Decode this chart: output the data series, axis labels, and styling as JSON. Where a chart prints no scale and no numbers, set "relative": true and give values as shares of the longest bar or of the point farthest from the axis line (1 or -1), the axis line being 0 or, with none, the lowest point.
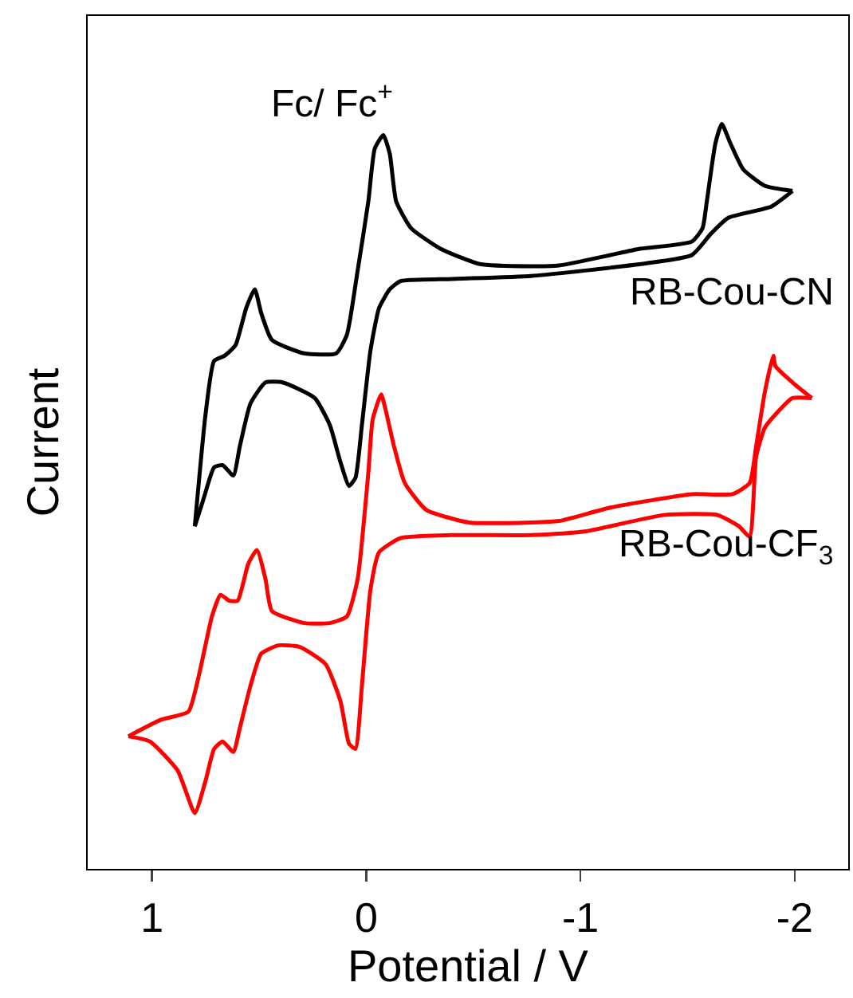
{
  "chart_data": {
    "type": "line",
    "relative": true,
    "xlabel": "Potential / V",
    "ylabel": "Current",
    "xlim": [
      1.3,
      -2.25
    ],
    "xticks": [
      1,
      0,
      -1,
      -2
    ],
    "tick_labels": "x",
    "grid": false,
    "legend": false,
    "marker": "none",
    "line_style": "solid",
    "annotations": [
      {
        "text": "Fc/ Fc$^{+}$",
        "x": -0.08,
        "y": 0.985
      }
    ],
    "series": [
      {
        "name": "RB-Cou-CN",
        "color": "#000000",
        "x": [
          -1.99,
          -1.86,
          -1.76,
          -1.7,
          -1.66,
          -1.63,
          -1.59,
          -1.57,
          -1.52,
          -1.27,
          -1.14,
          -0.9,
          -0.77,
          -0.53,
          -0.35,
          -0.21,
          -0.14,
          -0.11,
          -0.08,
          -0.04,
          -0.01,
          0.04,
          0.09,
          0.14,
          0.29,
          0.44,
          0.49,
          0.52,
          0.56,
          0.61,
          0.66,
          0.71,
          0.75,
          0.8
        ],
        "values": [
          0.91,
          0.917,
          0.939,
          0.974,
          1.0,
          0.974,
          0.896,
          0.86,
          0.842,
          0.832,
          0.824,
          0.81,
          0.809,
          0.812,
          0.832,
          0.86,
          0.896,
          0.96,
          0.985,
          0.967,
          0.896,
          0.803,
          0.717,
          0.692,
          0.692,
          0.71,
          0.746,
          0.778,
          0.753,
          0.703,
          0.689,
          0.682,
          0.61,
          0.46
        ]
      },
      {
        "color": "#000000",
        "x": [
          0.8,
          0.76,
          0.71,
          0.67,
          0.62,
          0.59,
          0.54,
          0.47,
          0.39,
          0.24,
          0.17,
          0.12,
          0.08,
          0.05,
          0.02,
          -0.02,
          -0.06,
          -0.11,
          -0.16,
          -0.4,
          -0.77,
          -1.14,
          -1.52,
          -1.61,
          -1.69,
          -1.89,
          -1.99
        ],
        "values": [
          0.46,
          0.496,
          0.539,
          0.542,
          0.528,
          0.567,
          0.625,
          0.653,
          0.653,
          0.632,
          0.596,
          0.546,
          0.514,
          0.525,
          0.596,
          0.696,
          0.753,
          0.778,
          0.789,
          0.792,
          0.796,
          0.807,
          0.824,
          0.853,
          0.874,
          0.889,
          0.91
        ]
      },
      {
        "name": "RB-Cou-CF$_{3}$",
        "color": "#ff0000",
        "x": [
          -2.08,
          -1.99,
          -1.91,
          -1.9,
          -1.86,
          -1.82,
          -1.79,
          -1.71,
          -1.52,
          -1.14,
          -0.9,
          -0.77,
          -0.48,
          -0.28,
          -0.18,
          -0.13,
          -0.09,
          -0.07,
          -0.03,
          -0.01,
          0.04,
          0.09,
          0.17,
          0.29,
          0.44,
          0.47,
          0.51,
          0.55,
          0.6,
          0.64,
          0.68,
          0.72,
          0.78,
          0.83,
          0.96,
          1.11
        ],
        "values": [
          0.632,
          0.653,
          0.675,
          0.689,
          0.639,
          0.567,
          0.518,
          0.503,
          0.503,
          0.485,
          0.467,
          0.465,
          0.465,
          0.482,
          0.518,
          0.567,
          0.617,
          0.637,
          0.603,
          0.532,
          0.389,
          0.339,
          0.33,
          0.33,
          0.346,
          0.389,
          0.428,
          0.41,
          0.36,
          0.36,
          0.368,
          0.339,
          0.261,
          0.211,
          0.2,
          0.178
        ]
      },
      {
        "color": "#ff0000",
        "x": [
          1.11,
          1.01,
          0.88,
          0.8,
          0.75,
          0.71,
          0.67,
          0.62,
          0.59,
          0.54,
          0.49,
          0.41,
          0.31,
          0.19,
          0.12,
          0.08,
          0.05,
          0.02,
          -0.02,
          -0.06,
          -0.16,
          -0.4,
          -0.77,
          -1.02,
          -1.39,
          -1.64,
          -1.74,
          -1.79,
          -1.82,
          -1.86,
          -1.91,
          -1.99,
          -2.08
        ],
        "values": [
          0.178,
          0.171,
          0.132,
          0.075,
          0.118,
          0.161,
          0.171,
          0.157,
          0.189,
          0.246,
          0.289,
          0.3,
          0.298,
          0.275,
          0.225,
          0.168,
          0.161,
          0.246,
          0.375,
          0.425,
          0.444,
          0.448,
          0.448,
          0.453,
          0.475,
          0.475,
          0.46,
          0.446,
          0.553,
          0.592,
          0.61,
          0.632,
          0.632
        ]
      }
    ]
  }
}
